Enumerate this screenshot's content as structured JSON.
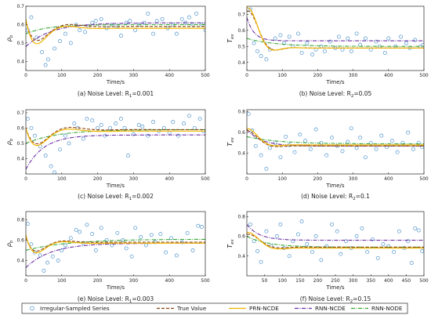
{
  "colors": {
    "observations": "#4f94cd",
    "true_value": "#8b4513",
    "prn_ncde": "#f0b400",
    "rnn_ncde": "#6b2fa3",
    "rnn_node": "#38a838"
  },
  "legend": {
    "items": [
      {
        "label": "Irregular-Sampled Series",
        "style": "circle"
      },
      {
        "label": "True Value",
        "style": "dashed",
        "color_key": "true_value"
      },
      {
        "label": "PRN-NCDE",
        "style": "solid",
        "color_key": "prn_ncde"
      },
      {
        "label": "RNN-NCDE",
        "style": "dashdot",
        "color_key": "rnn_ncde"
      },
      {
        "label": "RNN-NODE",
        "style": "dashdot",
        "color_key": "rnn_node"
      }
    ]
  },
  "chart_data": [
    {
      "type": "line",
      "caption": "(a) Noise Level: R",
      "caption_sub": "1",
      "caption_tail": "=0.001",
      "ylabel_main": "ρ",
      "ylabel_sub": "b",
      "xlabel": "Time/s",
      "xlim": [
        0,
        500
      ],
      "ylim": [
        0.35,
        0.7
      ],
      "xticks": [
        0,
        100,
        200,
        300,
        400,
        500
      ],
      "yticks": [
        0.4,
        0.5,
        0.6,
        0.7
      ],
      "ytick_labels": [
        "0.4",
        "0.5",
        "0.6",
        "0.7"
      ],
      "true_value": {
        "kind": "osc",
        "final": 0.59,
        "init": 0.62,
        "amp": -0.2,
        "tau": 45,
        "period": 190,
        "phase": 0.0
      },
      "prn_ncde": {
        "kind": "osc",
        "final": 0.58,
        "init": 0.63,
        "amp": -0.24,
        "tau": 40,
        "period": 180,
        "phase": 0.0
      },
      "rnn_ncde": {
        "kind": "rise",
        "y0": 0.48,
        "final": 0.61,
        "tau": 70
      },
      "rnn_node": {
        "kind": "rise",
        "y0": 0.55,
        "final": 0.6,
        "tau": 60
      },
      "scatter": [
        [
          5,
          0.57
        ],
        [
          15,
          0.64
        ],
        [
          30,
          0.53
        ],
        [
          45,
          0.45
        ],
        [
          55,
          0.38
        ],
        [
          62,
          0.41
        ],
        [
          80,
          0.47
        ],
        [
          95,
          0.51
        ],
        [
          110,
          0.55
        ],
        [
          125,
          0.5
        ],
        [
          140,
          0.6
        ],
        [
          150,
          0.57
        ],
        [
          165,
          0.56
        ],
        [
          175,
          0.59
        ],
        [
          185,
          0.61
        ],
        [
          195,
          0.62
        ],
        [
          210,
          0.63
        ],
        [
          225,
          0.58
        ],
        [
          240,
          0.6
        ],
        [
          255,
          0.59
        ],
        [
          265,
          0.54
        ],
        [
          280,
          0.61
        ],
        [
          290,
          0.62
        ],
        [
          305,
          0.57
        ],
        [
          315,
          0.6
        ],
        [
          330,
          0.61
        ],
        [
          340,
          0.66
        ],
        [
          355,
          0.55
        ],
        [
          365,
          0.62
        ],
        [
          380,
          0.63
        ],
        [
          395,
          0.58
        ],
        [
          410,
          0.6
        ],
        [
          420,
          0.55
        ],
        [
          435,
          0.63
        ],
        [
          445,
          0.61
        ],
        [
          455,
          0.64
        ],
        [
          465,
          0.6
        ],
        [
          475,
          0.66
        ],
        [
          490,
          0.6
        ],
        [
          500,
          0.57
        ]
      ]
    },
    {
      "type": "line",
      "caption": "(b) Noise Level: R",
      "caption_sub": "2",
      "caption_tail": "=0.05",
      "ylabel_main": "T",
      "ylabel_sub": "ex",
      "xlabel": "Time/s",
      "xlim": [
        0,
        500
      ],
      "ylim": [
        0.35,
        0.75
      ],
      "xticks": [
        0,
        100,
        200,
        300,
        400,
        500
      ],
      "yticks": [
        0.4,
        0.5,
        0.6,
        0.7
      ],
      "ytick_labels": [
        "0.4",
        "0.5",
        "0.6",
        "0.7"
      ],
      "true_value": {
        "kind": "osc",
        "final": 0.49,
        "init": 0.72,
        "amp": 0.25,
        "tau": 30,
        "period": 120,
        "phase": 0.0
      },
      "prn_ncde": {
        "kind": "osc",
        "final": 0.49,
        "init": 0.74,
        "amp": 0.28,
        "tau": 28,
        "period": 115,
        "phase": 0.0
      },
      "rnn_ncde": {
        "kind": "decay",
        "y0": 0.68,
        "final": 0.535,
        "tau": 20
      },
      "rnn_node": {
        "kind": "decay",
        "y0": 0.55,
        "final": 0.5,
        "tau": 80
      },
      "scatter": [
        [
          10,
          0.73
        ],
        [
          20,
          0.52
        ],
        [
          30,
          0.47
        ],
        [
          40,
          0.44
        ],
        [
          55,
          0.42
        ],
        [
          65,
          0.48
        ],
        [
          80,
          0.55
        ],
        [
          95,
          0.57
        ],
        [
          105,
          0.52
        ],
        [
          120,
          0.56
        ],
        [
          130,
          0.5
        ],
        [
          145,
          0.58
        ],
        [
          155,
          0.46
        ],
        [
          170,
          0.52
        ],
        [
          185,
          0.45
        ],
        [
          195,
          0.48
        ],
        [
          210,
          0.5
        ],
        [
          220,
          0.47
        ],
        [
          235,
          0.53
        ],
        [
          250,
          0.49
        ],
        [
          260,
          0.56
        ],
        [
          270,
          0.48
        ],
        [
          285,
          0.55
        ],
        [
          295,
          0.47
        ],
        [
          310,
          0.58
        ],
        [
          320,
          0.51
        ],
        [
          335,
          0.55
        ],
        [
          350,
          0.48
        ],
        [
          365,
          0.53
        ],
        [
          375,
          0.5
        ],
        [
          390,
          0.46
        ],
        [
          400,
          0.55
        ],
        [
          420,
          0.5
        ],
        [
          435,
          0.56
        ],
        [
          450,
          0.52
        ],
        [
          460,
          0.49
        ],
        [
          475,
          0.54
        ],
        [
          490,
          0.5
        ],
        [
          498,
          0.51
        ]
      ]
    },
    {
      "type": "line",
      "caption": "(c) Noise Level: R",
      "caption_sub": "1",
      "caption_tail": "=0.002",
      "ylabel_main": "ρ",
      "ylabel_sub": "b",
      "xlabel": "Time/s",
      "xlim": [
        0,
        500
      ],
      "ylim": [
        0.3,
        0.72
      ],
      "xticks": [
        0,
        100,
        200,
        300,
        400,
        500
      ],
      "yticks": [
        0.4,
        0.5,
        0.6,
        0.7
      ],
      "ytick_labels": [
        "0.4",
        "0.5",
        "0.6",
        "0.7"
      ],
      "true_value": {
        "kind": "osc",
        "final": 0.59,
        "init": 0.6,
        "amp": -0.21,
        "tau": 50,
        "period": 190,
        "phase": 0.0
      },
      "prn_ncde": {
        "kind": "osc",
        "final": 0.58,
        "init": 0.6,
        "amp": -0.23,
        "tau": 45,
        "period": 185,
        "phase": 0.0
      },
      "rnn_ncde": {
        "kind": "rise",
        "y0": 0.33,
        "final": 0.555,
        "tau": 50
      },
      "rnn_node": {
        "kind": "rise",
        "y0": 0.5,
        "final": 0.59,
        "tau": 90
      },
      "scatter": [
        [
          5,
          0.66
        ],
        [
          15,
          0.6
        ],
        [
          25,
          0.55
        ],
        [
          40,
          0.48
        ],
        [
          55,
          0.42
        ],
        [
          70,
          0.35
        ],
        [
          80,
          0.31
        ],
        [
          95,
          0.46
        ],
        [
          110,
          0.55
        ],
        [
          120,
          0.5
        ],
        [
          135,
          0.63
        ],
        [
          145,
          0.6
        ],
        [
          160,
          0.53
        ],
        [
          170,
          0.66
        ],
        [
          185,
          0.65
        ],
        [
          200,
          0.6
        ],
        [
          210,
          0.62
        ],
        [
          220,
          0.55
        ],
        [
          235,
          0.6
        ],
        [
          250,
          0.63
        ],
        [
          265,
          0.66
        ],
        [
          275,
          0.6
        ],
        [
          285,
          0.42
        ],
        [
          300,
          0.56
        ],
        [
          315,
          0.62
        ],
        [
          325,
          0.61
        ],
        [
          340,
          0.55
        ],
        [
          355,
          0.64
        ],
        [
          370,
          0.58
        ],
        [
          385,
          0.6
        ],
        [
          400,
          0.57
        ],
        [
          410,
          0.64
        ],
        [
          425,
          0.55
        ],
        [
          440,
          0.63
        ],
        [
          455,
          0.68
        ],
        [
          470,
          0.6
        ],
        [
          485,
          0.66
        ],
        [
          495,
          0.58
        ]
      ]
    },
    {
      "type": "line",
      "caption": "(d) Noise Level: R",
      "caption_sub": "2",
      "caption_tail": "=0.1",
      "ylabel_main": "T",
      "ylabel_sub": "ex",
      "xlabel": "Time/s",
      "xlim": [
        0,
        500
      ],
      "ylim": [
        0.2,
        0.82
      ],
      "xticks": [
        0,
        100,
        200,
        300,
        400,
        500
      ],
      "yticks": [
        0.4,
        0.6,
        0.8
      ],
      "ytick_labels": [
        "0.4",
        "0.6",
        "0.8"
      ],
      "true_value": {
        "kind": "osc",
        "final": 0.47,
        "init": 0.62,
        "amp": 0.15,
        "tau": 30,
        "period": 130,
        "phase": 0.0
      },
      "prn_ncde": {
        "kind": "osc",
        "final": 0.48,
        "init": 0.64,
        "amp": 0.18,
        "tau": 28,
        "period": 125,
        "phase": 0.0
      },
      "rnn_ncde": {
        "kind": "decay",
        "y0": 0.63,
        "final": 0.47,
        "tau": 40
      },
      "rnn_node": {
        "kind": "decay",
        "y0": 0.56,
        "final": 0.49,
        "tau": 90
      },
      "scatter": [
        [
          5,
          0.78
        ],
        [
          15,
          0.62
        ],
        [
          25,
          0.47
        ],
        [
          40,
          0.38
        ],
        [
          55,
          0.25
        ],
        [
          65,
          0.45
        ],
        [
          80,
          0.5
        ],
        [
          95,
          0.36
        ],
        [
          110,
          0.56
        ],
        [
          120,
          0.48
        ],
        [
          135,
          0.41
        ],
        [
          150,
          0.58
        ],
        [
          165,
          0.52
        ],
        [
          180,
          0.44
        ],
        [
          195,
          0.63
        ],
        [
          210,
          0.5
        ],
        [
          225,
          0.38
        ],
        [
          240,
          0.55
        ],
        [
          255,
          0.47
        ],
        [
          270,
          0.42
        ],
        [
          285,
          0.51
        ],
        [
          295,
          0.64
        ],
        [
          310,
          0.45
        ],
        [
          320,
          0.55
        ],
        [
          335,
          0.36
        ],
        [
          350,
          0.5
        ],
        [
          365,
          0.44
        ],
        [
          380,
          0.57
        ],
        [
          395,
          0.46
        ],
        [
          410,
          0.52
        ],
        [
          425,
          0.41
        ],
        [
          440,
          0.5
        ],
        [
          455,
          0.6
        ],
        [
          470,
          0.44
        ],
        [
          485,
          0.5
        ],
        [
          495,
          0.46
        ]
      ]
    },
    {
      "type": "line",
      "caption": "(e) Noise Level: R",
      "caption_sub": "1",
      "caption_tail": "=0.003",
      "ylabel_main": "ρ",
      "ylabel_sub": "b",
      "xlabel": "Time/s",
      "xlim": [
        0,
        500
      ],
      "ylim": [
        0.25,
        0.88
      ],
      "xticks": [
        0,
        100,
        200,
        300,
        400,
        500
      ],
      "yticks": [
        0.4,
        0.6,
        0.8
      ],
      "ytick_labels": [
        "0.4",
        "0.6",
        "0.8"
      ],
      "true_value": {
        "kind": "osc",
        "final": 0.58,
        "init": 0.63,
        "amp": -0.24,
        "tau": 40,
        "period": 170,
        "phase": 0.0
      },
      "prn_ncde": {
        "kind": "osc",
        "final": 0.57,
        "init": 0.65,
        "amp": -0.28,
        "tau": 38,
        "period": 165,
        "phase": 0.0
      },
      "rnn_ncde": {
        "kind": "rise",
        "y0": 0.33,
        "final": 0.57,
        "tau": 70
      },
      "rnn_node": {
        "kind": "rise",
        "y0": 0.5,
        "final": 0.61,
        "tau": 120
      },
      "scatter": [
        [
          5,
          0.76
        ],
        [
          15,
          0.56
        ],
        [
          25,
          0.48
        ],
        [
          40,
          0.45
        ],
        [
          50,
          0.3
        ],
        [
          60,
          0.38
        ],
        [
          75,
          0.44
        ],
        [
          90,
          0.4
        ],
        [
          100,
          0.5
        ],
        [
          110,
          0.55
        ],
        [
          125,
          0.62
        ],
        [
          140,
          0.7
        ],
        [
          150,
          0.68
        ],
        [
          160,
          0.57
        ],
        [
          170,
          0.75
        ],
        [
          185,
          0.66
        ],
        [
          195,
          0.5
        ],
        [
          210,
          0.72
        ],
        [
          225,
          0.6
        ],
        [
          240,
          0.55
        ],
        [
          255,
          0.67
        ],
        [
          270,
          0.6
        ],
        [
          280,
          0.52
        ],
        [
          295,
          0.44
        ],
        [
          305,
          0.72
        ],
        [
          320,
          0.63
        ],
        [
          335,
          0.55
        ],
        [
          350,
          0.65
        ],
        [
          360,
          0.58
        ],
        [
          375,
          0.66
        ],
        [
          390,
          0.48
        ],
        [
          405,
          0.62
        ],
        [
          420,
          0.45
        ],
        [
          435,
          0.58
        ],
        [
          450,
          0.67
        ],
        [
          465,
          0.5
        ],
        [
          480,
          0.74
        ],
        [
          490,
          0.73
        ]
      ]
    },
    {
      "type": "line",
      "caption": "(f) Noise Level: R",
      "caption_sub": "2",
      "caption_tail": "=0.15",
      "ylabel_main": "T",
      "ylabel_sub": "ex",
      "xlabel": "Time/s",
      "xlim": [
        0,
        500
      ],
      "ylim": [
        0.2,
        0.85
      ],
      "xticks": [
        50,
        100,
        150,
        200,
        250,
        300,
        350,
        400,
        450,
        500
      ],
      "yticks": [
        0.4,
        0.6,
        0.8
      ],
      "ytick_labels": [
        "0.4",
        "0.6",
        "0.8"
      ],
      "true_value": {
        "kind": "osc",
        "final": 0.49,
        "init": 0.62,
        "amp": 0.14,
        "tau": 35,
        "period": 140,
        "phase": 0.0
      },
      "prn_ncde": {
        "kind": "osc",
        "final": 0.48,
        "init": 0.64,
        "amp": 0.17,
        "tau": 33,
        "period": 135,
        "phase": 0.0
      },
      "rnn_ncde": {
        "kind": "decay",
        "y0": 0.72,
        "final": 0.56,
        "tau": 35
      },
      "rnn_node": {
        "kind": "decay",
        "y0": 0.6,
        "final": 0.49,
        "tau": 60
      },
      "scatter": [
        [
          10,
          0.72
        ],
        [
          20,
          0.55
        ],
        [
          30,
          0.45
        ],
        [
          40,
          0.34
        ],
        [
          55,
          0.65
        ],
        [
          70,
          0.5
        ],
        [
          85,
          0.6
        ],
        [
          95,
          0.72
        ],
        [
          105,
          0.48
        ],
        [
          120,
          0.4
        ],
        [
          130,
          0.55
        ],
        [
          145,
          0.62
        ],
        [
          155,
          0.75
        ],
        [
          170,
          0.52
        ],
        [
          185,
          0.44
        ],
        [
          195,
          0.6
        ],
        [
          210,
          0.36
        ],
        [
          225,
          0.5
        ],
        [
          240,
          0.72
        ],
        [
          255,
          0.65
        ],
        [
          265,
          0.42
        ],
        [
          280,
          0.55
        ],
        [
          295,
          0.48
        ],
        [
          310,
          0.6
        ],
        [
          325,
          0.68
        ],
        [
          340,
          0.44
        ],
        [
          355,
          0.57
        ],
        [
          370,
          0.38
        ],
        [
          385,
          0.52
        ],
        [
          400,
          0.5
        ],
        [
          415,
          0.44
        ],
        [
          430,
          0.65
        ],
        [
          445,
          0.48
        ],
        [
          455,
          0.55
        ],
        [
          465,
          0.33
        ],
        [
          475,
          0.68
        ],
        [
          485,
          0.66
        ],
        [
          495,
          0.45
        ]
      ]
    }
  ]
}
